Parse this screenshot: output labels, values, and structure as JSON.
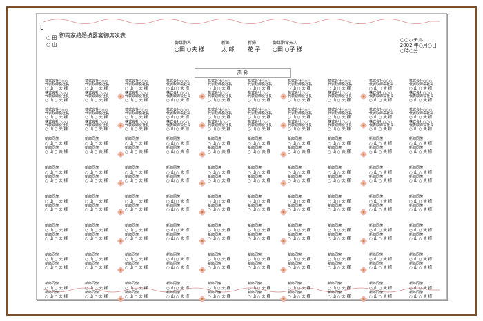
{
  "document": {
    "cursor_mark": "L",
    "title": "御両家結婚披露宴御席次表",
    "families_left": [
      "○ 田",
      "○ 山"
    ],
    "matchmaker_label": "御媒酌人",
    "matchmaker_name": "○田 ○夫 様",
    "groom_label": "新郎",
    "groom_name": "太 郎",
    "bride_label": "新婦",
    "bride_name": "花 子",
    "matchmaker_wife_label": "御媒酌令夫人",
    "matchmaker_wife_name": "○田 ○子 様",
    "venue": "○○ホテル",
    "date": "2002 年○月○日",
    "time": "○時○分",
    "head_table": "高 砂",
    "guest_company": "株式会社○○○",
    "guest_title": "代表取締役社長",
    "guest_name": "○ 山 ○ 夫 様",
    "guest_relation": "新郎同僚"
  },
  "colors": {
    "frame": "#7a4f2a",
    "vine": "#d98f8f",
    "flower_outer": "#f2b8ae",
    "flower_center": "#c9853a"
  }
}
